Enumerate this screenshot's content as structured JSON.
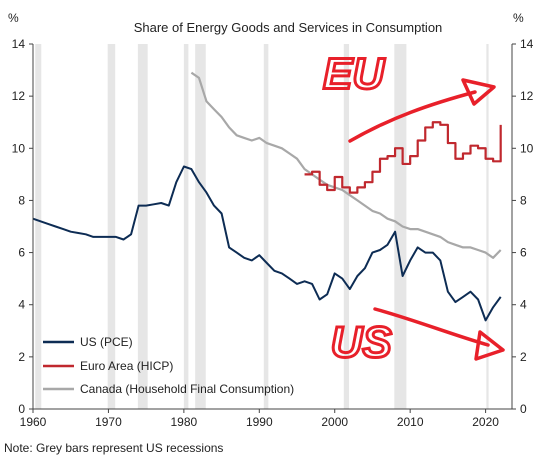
{
  "chart_data": {
    "type": "line",
    "title": "Share of Energy Goods and Services in Consumption",
    "ylabel_left": "%",
    "ylabel_right": "%",
    "xlim": [
      1960,
      2023.5
    ],
    "ylim": [
      0,
      14
    ],
    "x_ticks": [
      1960,
      1970,
      1980,
      1990,
      2000,
      2010,
      2020
    ],
    "y_ticks": [
      0,
      2,
      4,
      6,
      8,
      10,
      12,
      14
    ],
    "grid": false,
    "legend_position": "bottom-left",
    "recessions": [
      [
        1960.3,
        1961.1
      ],
      [
        1969.9,
        1970.9
      ],
      [
        1973.9,
        1975.2
      ],
      [
        1980.0,
        1980.6
      ],
      [
        1981.5,
        1982.9
      ],
      [
        1990.6,
        1991.2
      ],
      [
        2001.2,
        2001.9
      ],
      [
        2007.9,
        2009.5
      ],
      [
        2020.1,
        2020.4
      ]
    ],
    "series": [
      {
        "name": "US (PCE)",
        "color": "#0d2c54",
        "points": [
          [
            1960,
            7.3
          ],
          [
            1961,
            7.2
          ],
          [
            1962,
            7.1
          ],
          [
            1963,
            7.0
          ],
          [
            1964,
            6.9
          ],
          [
            1965,
            6.8
          ],
          [
            1966,
            6.75
          ],
          [
            1967,
            6.7
          ],
          [
            1968,
            6.6
          ],
          [
            1969,
            6.6
          ],
          [
            1970,
            6.6
          ],
          [
            1971,
            6.6
          ],
          [
            1972,
            6.5
          ],
          [
            1973,
            6.7
          ],
          [
            1974,
            7.8
          ],
          [
            1975,
            7.8
          ],
          [
            1976,
            7.85
          ],
          [
            1977,
            7.9
          ],
          [
            1978,
            7.8
          ],
          [
            1979,
            8.7
          ],
          [
            1980,
            9.3
          ],
          [
            1981,
            9.2
          ],
          [
            1982,
            8.7
          ],
          [
            1983,
            8.3
          ],
          [
            1984,
            7.8
          ],
          [
            1985,
            7.5
          ],
          [
            1986,
            6.2
          ],
          [
            1987,
            6.0
          ],
          [
            1988,
            5.8
          ],
          [
            1989,
            5.7
          ],
          [
            1990,
            5.9
          ],
          [
            1991,
            5.6
          ],
          [
            1992,
            5.3
          ],
          [
            1993,
            5.2
          ],
          [
            1994,
            5.0
          ],
          [
            1995,
            4.8
          ],
          [
            1996,
            4.9
          ],
          [
            1997,
            4.8
          ],
          [
            1998,
            4.2
          ],
          [
            1999,
            4.4
          ],
          [
            2000,
            5.2
          ],
          [
            2001,
            5.0
          ],
          [
            2002,
            4.6
          ],
          [
            2003,
            5.1
          ],
          [
            2004,
            5.4
          ],
          [
            2005,
            6.0
          ],
          [
            2006,
            6.1
          ],
          [
            2007,
            6.3
          ],
          [
            2008,
            6.8
          ],
          [
            2009,
            5.1
          ],
          [
            2010,
            5.7
          ],
          [
            2011,
            6.2
          ],
          [
            2012,
            6.0
          ],
          [
            2013,
            6.0
          ],
          [
            2014,
            5.7
          ],
          [
            2015,
            4.5
          ],
          [
            2016,
            4.1
          ],
          [
            2017,
            4.3
          ],
          [
            2018,
            4.5
          ],
          [
            2019,
            4.2
          ],
          [
            2020,
            3.4
          ],
          [
            2021,
            3.9
          ],
          [
            2022,
            4.3
          ]
        ]
      },
      {
        "name": "Euro Area (HICP)",
        "color": "#c0282e",
        "points": [
          [
            1996,
            9.0
          ],
          [
            1997,
            9.1
          ],
          [
            1998,
            8.6
          ],
          [
            1999,
            8.4
          ],
          [
            2000,
            8.9
          ],
          [
            2001,
            8.5
          ],
          [
            2002,
            8.3
          ],
          [
            2003,
            8.5
          ],
          [
            2004,
            8.7
          ],
          [
            2005,
            9.1
          ],
          [
            2006,
            9.6
          ],
          [
            2007,
            9.7
          ],
          [
            2008,
            10.0
          ],
          [
            2009,
            9.4
          ],
          [
            2010,
            9.7
          ],
          [
            2011,
            10.3
          ],
          [
            2012,
            10.8
          ],
          [
            2013,
            11.0
          ],
          [
            2014,
            10.9
          ],
          [
            2015,
            10.2
          ],
          [
            2016,
            9.6
          ],
          [
            2017,
            9.8
          ],
          [
            2018,
            10.1
          ],
          [
            2019,
            10.0
          ],
          [
            2020,
            9.6
          ],
          [
            2021,
            9.5
          ],
          [
            2022,
            10.9
          ]
        ]
      },
      {
        "name": "Canada (Household Final Consumption)",
        "color": "#a8a8a8",
        "points": [
          [
            1981,
            12.9
          ],
          [
            1982,
            12.7
          ],
          [
            1983,
            11.8
          ],
          [
            1984,
            11.5
          ],
          [
            1985,
            11.2
          ],
          [
            1986,
            10.8
          ],
          [
            1987,
            10.5
          ],
          [
            1988,
            10.4
          ],
          [
            1989,
            10.3
          ],
          [
            1990,
            10.4
          ],
          [
            1991,
            10.2
          ],
          [
            1992,
            10.1
          ],
          [
            1993,
            10.0
          ],
          [
            1994,
            9.8
          ],
          [
            1995,
            9.6
          ],
          [
            1996,
            9.2
          ],
          [
            1997,
            9.0
          ],
          [
            1998,
            8.8
          ],
          [
            1999,
            8.6
          ],
          [
            2000,
            8.5
          ],
          [
            2001,
            8.4
          ],
          [
            2002,
            8.2
          ],
          [
            2003,
            8.0
          ],
          [
            2004,
            7.8
          ],
          [
            2005,
            7.6
          ],
          [
            2006,
            7.5
          ],
          [
            2007,
            7.3
          ],
          [
            2008,
            7.2
          ],
          [
            2009,
            7.0
          ],
          [
            2010,
            6.9
          ],
          [
            2011,
            6.9
          ],
          [
            2012,
            6.8
          ],
          [
            2013,
            6.7
          ],
          [
            2014,
            6.6
          ],
          [
            2015,
            6.4
          ],
          [
            2016,
            6.3
          ],
          [
            2017,
            6.2
          ],
          [
            2018,
            6.2
          ],
          [
            2019,
            6.1
          ],
          [
            2020,
            6.0
          ],
          [
            2021,
            5.8
          ],
          [
            2022,
            6.1
          ]
        ]
      }
    ],
    "annotations": [
      {
        "text": "EU",
        "color": "#e8202a",
        "x": 2002.5,
        "y": 12.3
      },
      {
        "text": "US",
        "color": "#e8202a",
        "x": 2003.5,
        "y": 2.0
      }
    ],
    "note": "Note: Grey bars represent US recessions"
  }
}
